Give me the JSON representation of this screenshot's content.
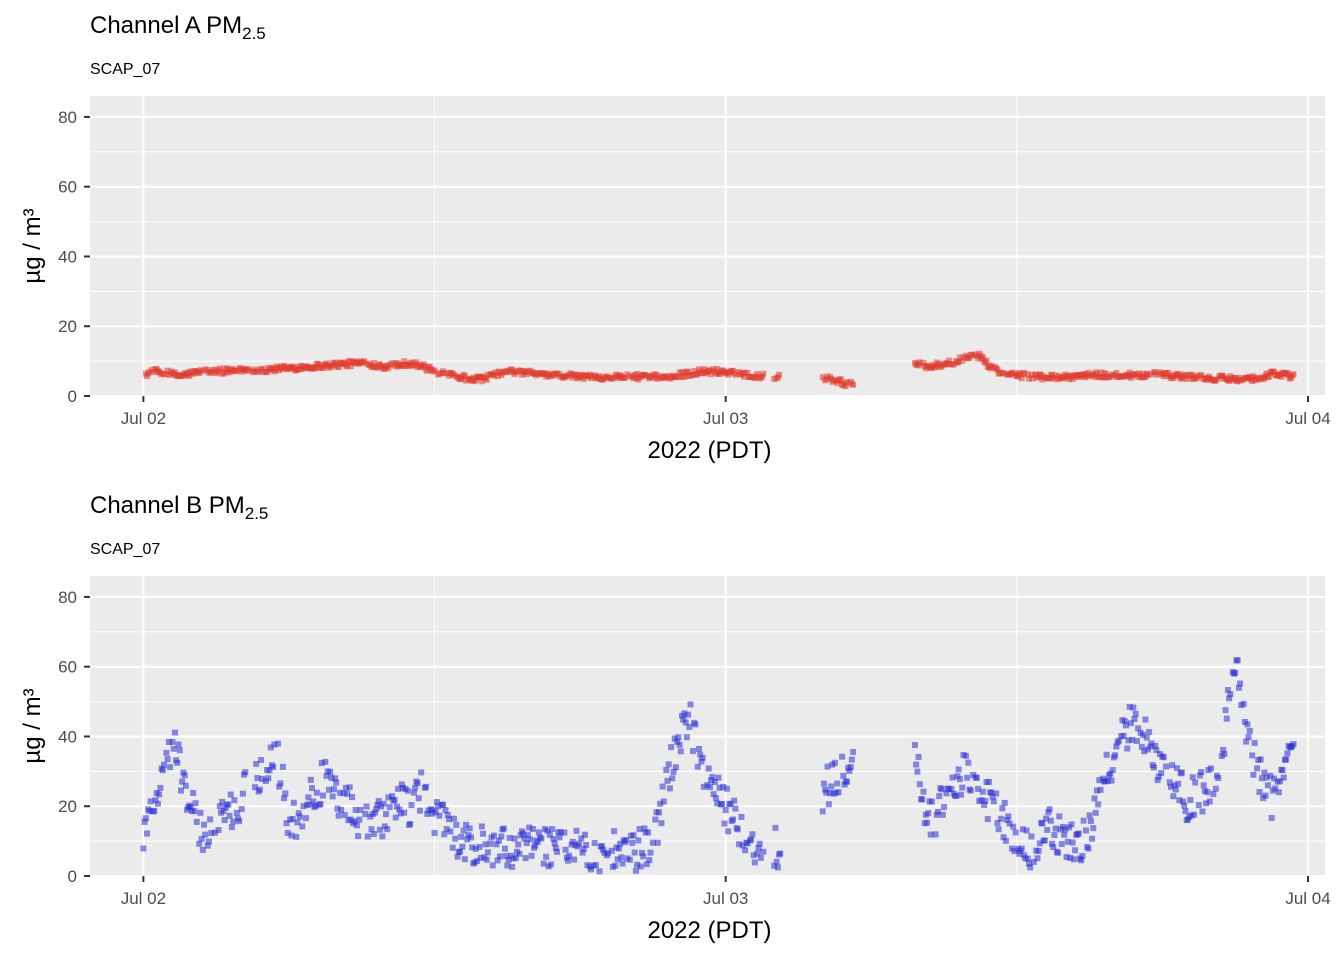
{
  "chart_data": [
    {
      "type": "scatter",
      "title_main": "Channel A PM",
      "title_sub": "2.5",
      "subtitle": "SCAP_07",
      "xlabel": "2022 (PDT)",
      "ylabel": "µg / m³",
      "ylim": [
        0,
        86
      ],
      "yticks": [
        0,
        20,
        40,
        60,
        80
      ],
      "xlim_hours": [
        -2.2,
        48.7
      ],
      "xticks": [
        {
          "hours": 0,
          "label": "Jul 02"
        },
        {
          "hours": 24,
          "label": "Jul 03"
        },
        {
          "hours": 48,
          "label": "Jul 04"
        }
      ],
      "color": "#e23b2e",
      "series": [
        {
          "name": "Channel A",
          "anchors": [
            [
              0.0,
              6
            ],
            [
              0.5,
              7
            ],
            [
              1.0,
              6.5
            ],
            [
              1.5,
              5.8
            ],
            [
              2.0,
              6.5
            ],
            [
              2.5,
              7
            ],
            [
              3.0,
              7
            ],
            [
              4.0,
              7.5
            ],
            [
              5.0,
              7.5
            ],
            [
              6.0,
              8
            ],
            [
              7.0,
              8.5
            ],
            [
              8.0,
              9
            ],
            [
              9.0,
              9.5
            ],
            [
              9.5,
              9
            ],
            [
              10.0,
              8.5
            ],
            [
              11.0,
              9.5
            ],
            [
              11.5,
              8.5
            ],
            [
              12.0,
              7
            ],
            [
              12.5,
              6
            ],
            [
              13.0,
              5.5
            ],
            [
              13.5,
              5
            ],
            [
              14.0,
              5
            ],
            [
              14.2,
              5.5
            ],
            [
              14.5,
              6
            ],
            [
              15.0,
              7
            ],
            [
              16.0,
              6.5
            ],
            [
              17.0,
              6
            ],
            [
              18.0,
              5.5
            ],
            [
              19.0,
              5.5
            ],
            [
              20.0,
              5.5
            ],
            [
              21.0,
              5.5
            ],
            [
              21.5,
              5
            ],
            [
              22.0,
              6
            ],
            [
              22.5,
              6.5
            ],
            [
              23.0,
              7
            ],
            [
              23.5,
              7
            ],
            [
              24.0,
              7
            ],
            [
              25.0,
              6
            ],
            [
              26.0,
              5.5
            ],
            [
              27.8,
              5.5
            ],
            [
              28.3,
              5
            ],
            [
              29.0,
              3.5
            ],
            [
              31.8,
              9
            ],
            [
              32.5,
              8.5
            ],
            [
              33.5,
              10
            ],
            [
              34.0,
              11
            ],
            [
              34.5,
              11.5
            ],
            [
              34.8,
              9
            ],
            [
              35.2,
              7
            ],
            [
              35.5,
              6
            ],
            [
              36.0,
              6
            ],
            [
              37.0,
              5.5
            ],
            [
              38.0,
              5.5
            ],
            [
              39.0,
              6
            ],
            [
              40.0,
              6
            ],
            [
              41.0,
              6
            ],
            [
              42.0,
              6
            ],
            [
              43.0,
              5.5
            ],
            [
              44.0,
              5
            ],
            [
              44.5,
              5
            ],
            [
              45.5,
              5
            ],
            [
              46.0,
              5
            ],
            [
              46.5,
              6.5
            ],
            [
              47.0,
              6
            ],
            [
              47.4,
              5.5
            ]
          ],
          "gaps": [
            [
              14.25,
              14.3
            ],
            [
              25.6,
              26.0
            ],
            [
              26.3,
              28.0
            ],
            [
              29.3,
              31.8
            ]
          ],
          "noise": 0.8
        }
      ]
    },
    {
      "type": "scatter",
      "title_main": "Channel B PM",
      "title_sub": "2.5",
      "subtitle": "SCAP_07",
      "xlabel": "2022 (PDT)",
      "ylabel": "µg / m³",
      "ylim": [
        0,
        86
      ],
      "yticks": [
        0,
        20,
        40,
        60,
        80
      ],
      "xlim_hours": [
        -2.2,
        48.7
      ],
      "xticks": [
        {
          "hours": 0,
          "label": "Jul 02"
        },
        {
          "hours": 24,
          "label": "Jul 03"
        },
        {
          "hours": 48,
          "label": "Jul 04"
        }
      ],
      "color": "#2b2fd6",
      "series": [
        {
          "name": "Channel B",
          "anchors": [
            [
              0.0,
              12
            ],
            [
              0.3,
              18
            ],
            [
              0.6,
              25
            ],
            [
              1.0,
              32
            ],
            [
              1.3,
              38
            ],
            [
              1.6,
              28
            ],
            [
              2.0,
              20
            ],
            [
              2.3,
              12
            ],
            [
              2.8,
              14
            ],
            [
              3.5,
              18
            ],
            [
              4.0,
              22
            ],
            [
              4.5,
              28
            ],
            [
              5.0,
              32
            ],
            [
              5.3,
              36
            ],
            [
              5.7,
              30
            ],
            [
              6.0,
              14
            ],
            [
              6.5,
              18
            ],
            [
              7.0,
              24
            ],
            [
              7.5,
              28
            ],
            [
              8.0,
              22
            ],
            [
              8.5,
              20
            ],
            [
              9.0,
              16
            ],
            [
              9.5,
              14
            ],
            [
              10.0,
              18
            ],
            [
              10.5,
              22
            ],
            [
              11.0,
              20
            ],
            [
              11.5,
              25
            ],
            [
              12.0,
              18
            ],
            [
              12.5,
              14
            ],
            [
              13.0,
              10
            ],
            [
              13.5,
              8
            ],
            [
              14.0,
              9
            ],
            [
              14.5,
              7
            ],
            [
              15.0,
              8
            ],
            [
              16.0,
              8
            ],
            [
              17.0,
              7.5
            ],
            [
              18.0,
              7
            ],
            [
              19.0,
              7
            ],
            [
              20.0,
              7
            ],
            [
              21.0,
              8
            ],
            [
              21.5,
              25
            ],
            [
              22.0,
              38
            ],
            [
              22.5,
              45
            ],
            [
              23.0,
              30
            ],
            [
              23.5,
              25
            ],
            [
              24.0,
              20
            ],
            [
              24.5,
              14
            ],
            [
              25.0,
              10
            ],
            [
              25.5,
              9
            ],
            [
              26.0,
              8
            ],
            [
              26.5,
              8
            ],
            [
              27.0,
              10
            ],
            [
              27.5,
              18
            ],
            [
              28.0,
              24
            ],
            [
              28.5,
              28
            ],
            [
              29.0,
              30
            ],
            [
              31.8,
              38
            ],
            [
              32.2,
              20
            ],
            [
              32.6,
              15
            ],
            [
              33.0,
              22
            ],
            [
              33.5,
              28
            ],
            [
              34.0,
              30
            ],
            [
              34.5,
              24
            ],
            [
              35.0,
              20
            ],
            [
              35.5,
              16
            ],
            [
              36.0,
              10
            ],
            [
              36.5,
              8
            ],
            [
              37.0,
              12
            ],
            [
              37.5,
              14
            ],
            [
              38.0,
              10
            ],
            [
              38.5,
              8
            ],
            [
              39.0,
              12
            ],
            [
              39.5,
              25
            ],
            [
              40.0,
              35
            ],
            [
              40.5,
              42
            ],
            [
              41.0,
              45
            ],
            [
              41.5,
              38
            ],
            [
              42.0,
              30
            ],
            [
              42.5,
              28
            ],
            [
              43.0,
              22
            ],
            [
              44.0,
              25
            ],
            [
              44.5,
              38
            ],
            [
              45.0,
              62
            ],
            [
              45.5,
              40
            ],
            [
              46.0,
              30
            ],
            [
              46.5,
              22
            ],
            [
              47.0,
              30
            ],
            [
              47.4,
              35
            ]
          ],
          "gaps": [
            [
              2.8,
              2.9
            ],
            [
              4.2,
              4.5
            ],
            [
              11.5,
              11.6
            ],
            [
              19.2,
              19.3
            ],
            [
              25.6,
              26.0
            ],
            [
              26.3,
              28.0
            ],
            [
              29.3,
              31.8
            ]
          ],
          "noise": 6
        }
      ]
    }
  ]
}
